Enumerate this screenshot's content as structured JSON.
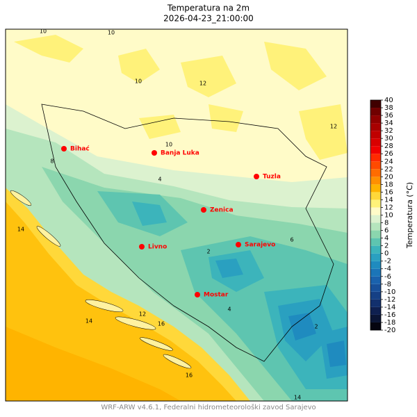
{
  "title": "Temperatura na 2m",
  "subtitle": "2026-04-23_21:00:00",
  "footer": "WRF-ARW v4.6.1, Federalni hidrometeorološki zavod Sarajevo",
  "cities": [
    "Bihać",
    "Banja Luka",
    "Tuzla",
    "Zenica",
    "Sarajevo",
    "Livno",
    "Mostar"
  ],
  "city_color": "#ff0000",
  "contour_labels": [
    10,
    10,
    10,
    12,
    12,
    10,
    8,
    4,
    2,
    6,
    14,
    14,
    12,
    16,
    16,
    14,
    2,
    4
  ],
  "colorbar": {
    "label": "Temperatura (°C)",
    "ticks": [
      -20,
      -18,
      -16,
      -14,
      -12,
      -10,
      -8,
      -6,
      -4,
      -2,
      0,
      2,
      4,
      6,
      8,
      10,
      12,
      14,
      16,
      18,
      20,
      22,
      24,
      26,
      28,
      30,
      32,
      34,
      36,
      38,
      40
    ],
    "colors": [
      "#050510",
      "#0b1535",
      "#0f2050",
      "#12306d",
      "#154085",
      "#18509a",
      "#1a62ad",
      "#1b75b8",
      "#1f8bbf",
      "#2aa0c0",
      "#3cb4bb",
      "#5ec5b0",
      "#8bd6ae",
      "#b5e5bd",
      "#dcf2cf",
      "#fffbc8",
      "#fff27a",
      "#ffd83a",
      "#ffb400",
      "#ff9000",
      "#ff6c00",
      "#ff4a00",
      "#ff2a00",
      "#f00000",
      "#d80000",
      "#c00000",
      "#a80000",
      "#900000",
      "#700000",
      "#400000"
    ]
  }
}
